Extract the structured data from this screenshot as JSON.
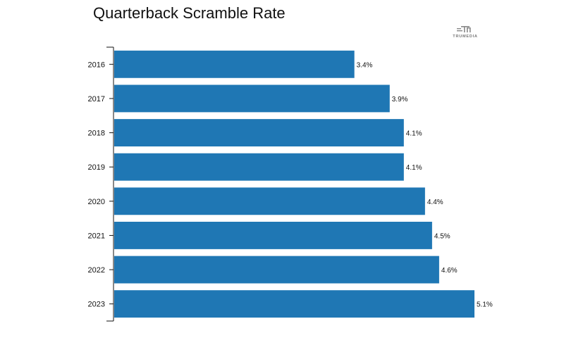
{
  "chart_data": {
    "type": "bar",
    "orientation": "horizontal",
    "title": "Quarterback Scramble Rate",
    "categories": [
      "2016",
      "2017",
      "2018",
      "2019",
      "2020",
      "2021",
      "2022",
      "2023"
    ],
    "values": [
      3.4,
      3.9,
      4.1,
      4.1,
      4.4,
      4.5,
      4.6,
      5.1
    ],
    "value_labels": [
      "3.4%",
      "3.9%",
      "4.1%",
      "4.1%",
      "4.4%",
      "4.5%",
      "4.6%",
      "5.1%"
    ],
    "xlabel": "",
    "ylabel": "",
    "xlim": [
      0,
      5.1
    ],
    "grid": false,
    "bar_color": "#1f77b4"
  },
  "logo": {
    "text": "TRUMEDIA"
  }
}
